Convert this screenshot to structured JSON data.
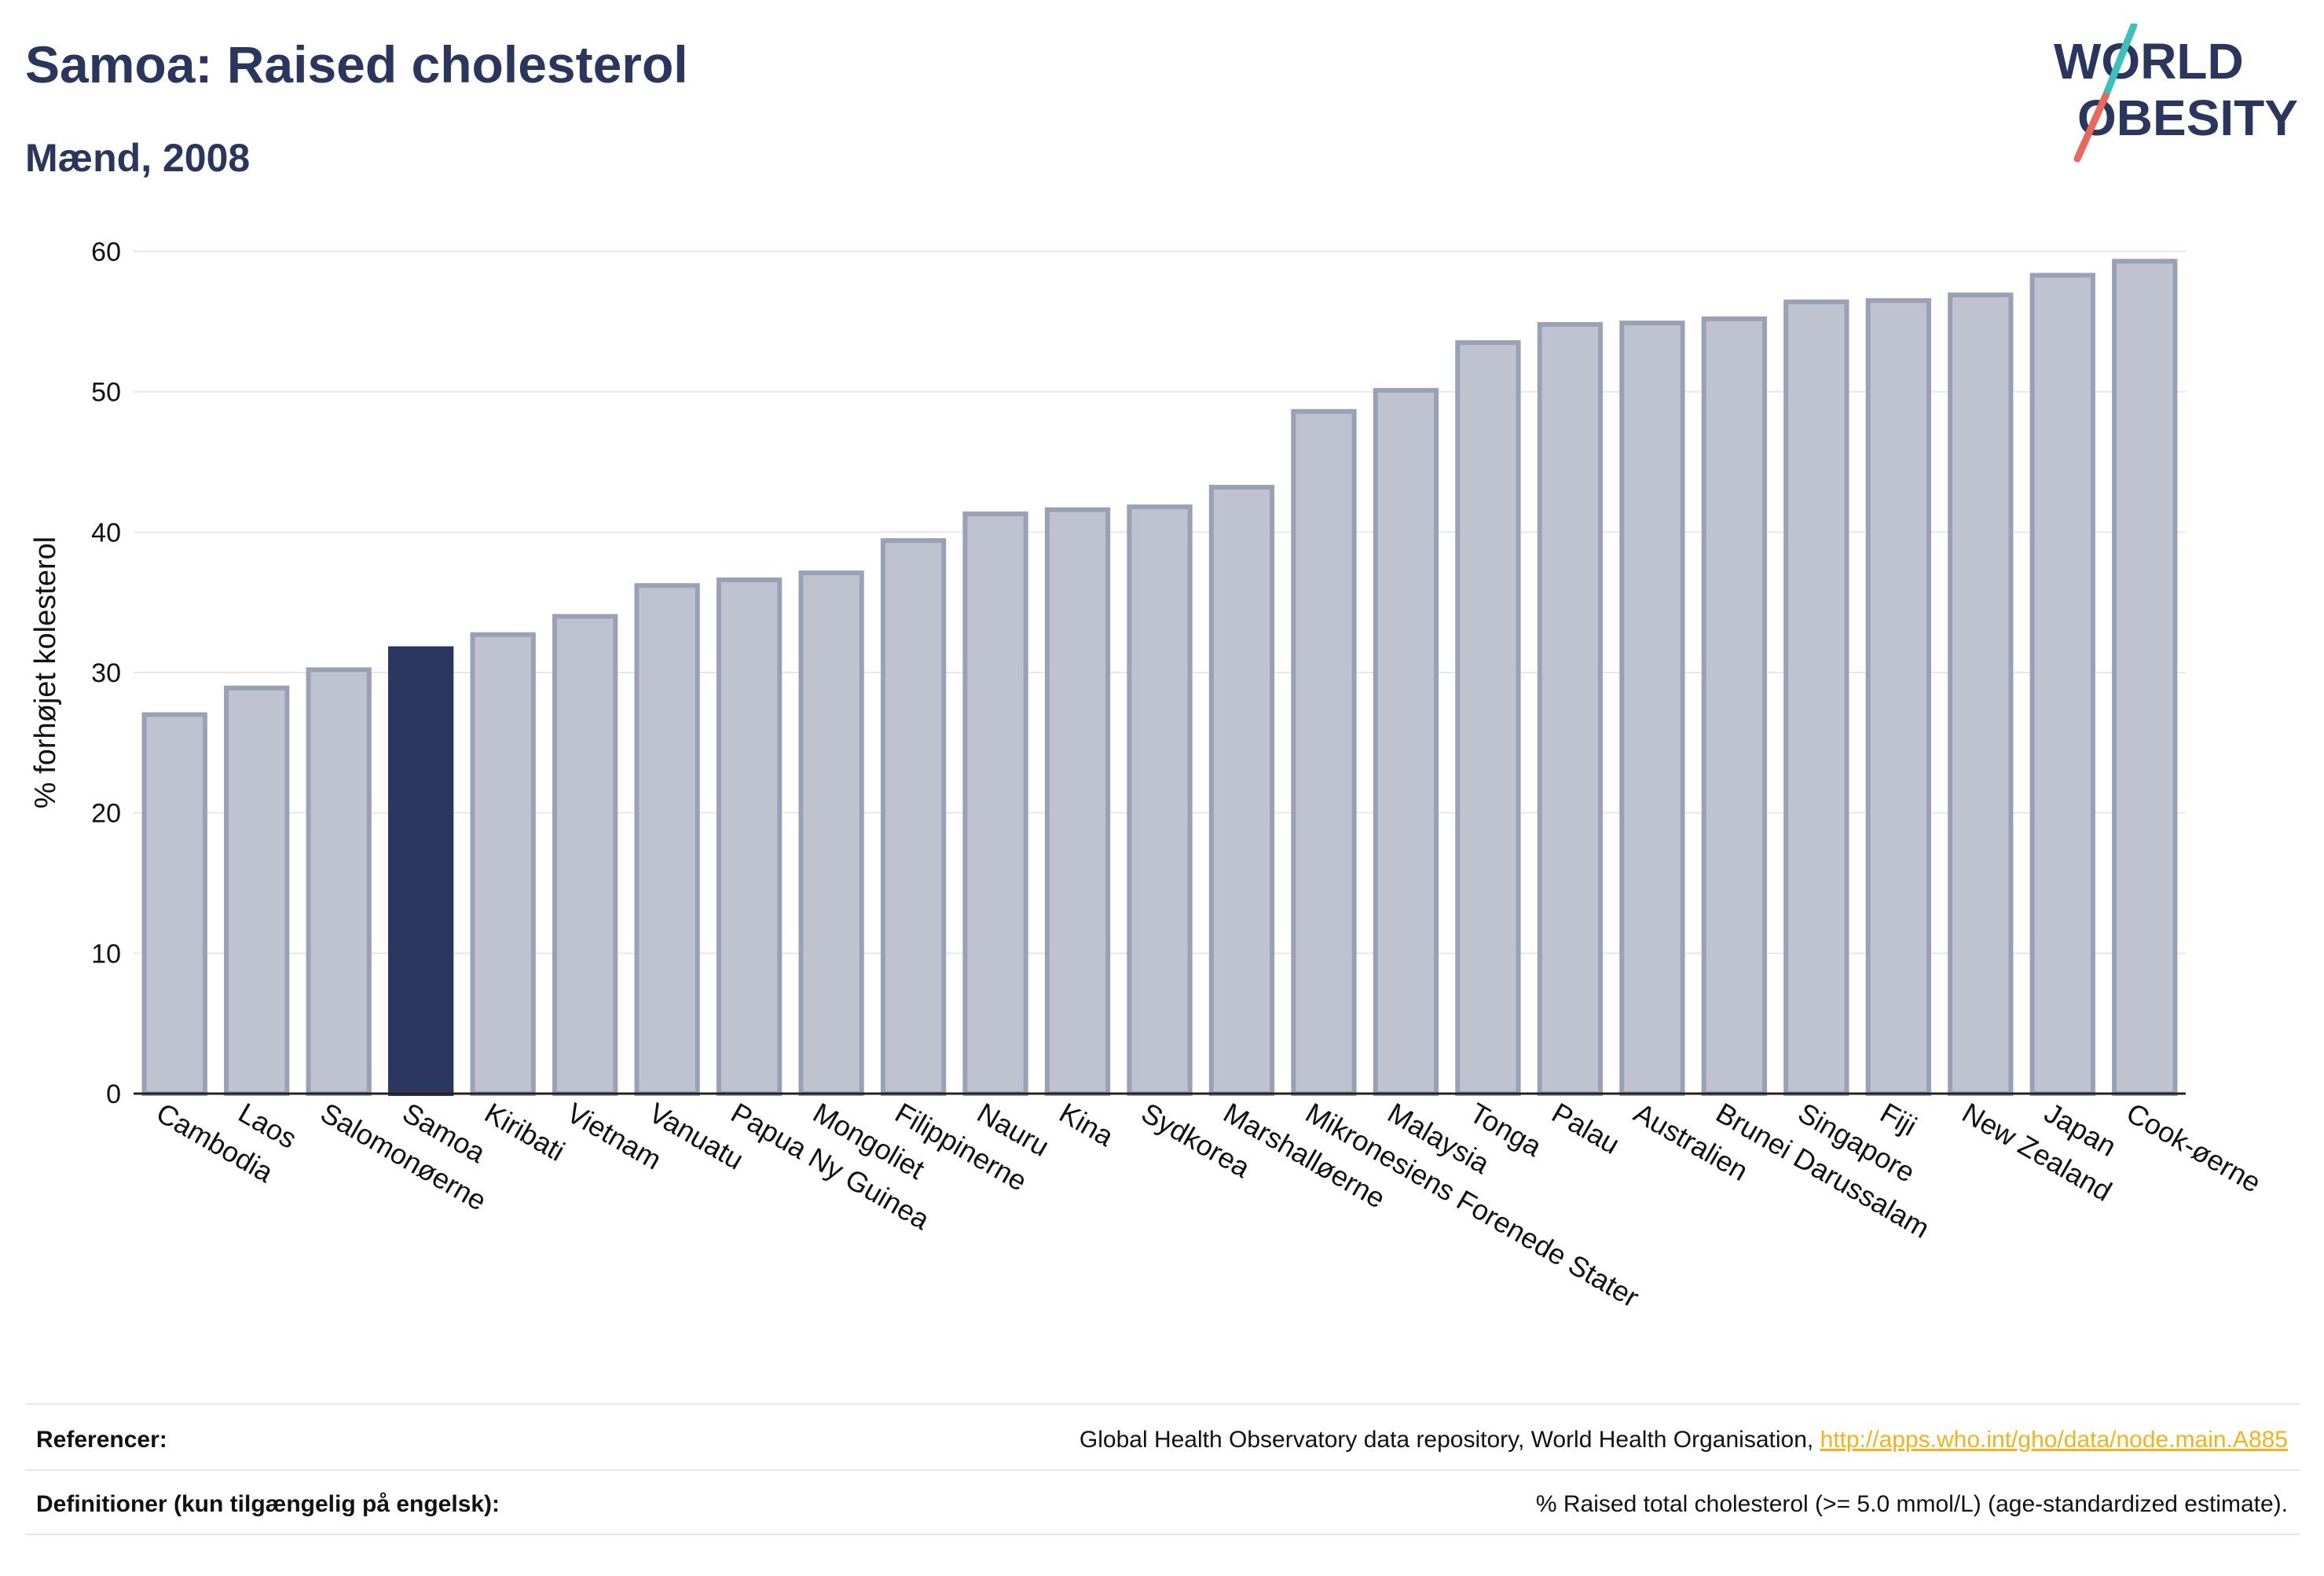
{
  "header": {
    "title": "Samoa: Raised cholesterol",
    "subtitle": "Mænd, 2008"
  },
  "logo": {
    "line1": "WORLD",
    "line2": "OBESITY",
    "accent_teal": "#3cbfbf",
    "accent_coral": "#e8685a"
  },
  "colors": {
    "bar": "#bfc3d0",
    "bar_border": "#9aa1b6",
    "highlight": "#2b3760",
    "text_dark": "#2a365e",
    "link": "#f2b21c"
  },
  "chart_data": {
    "type": "bar",
    "ylabel": "% forhøjet kolesterol",
    "ylim": [
      0,
      60
    ],
    "yticks": [
      0,
      10,
      20,
      30,
      40,
      50,
      60
    ],
    "grid": true,
    "highlight": "Samoa",
    "categories": [
      "Cambodia",
      "Laos",
      "Salomonøerne",
      "Samoa",
      "Kiribati",
      "Vietnam",
      "Vanuatu",
      "Papua Ny Guinea",
      "Mongoliet",
      "Filippinerne",
      "Nauru",
      "Kina",
      "Sydkorea",
      "Marshalløerne",
      "Mikronesiens Forenede Stater",
      "Malaysia",
      "Tonga",
      "Palau",
      "Australien",
      "Brunei Darussalam",
      "Singapore",
      "Fiji",
      "New Zealand",
      "Japan",
      "Cook-øerne"
    ],
    "values": [
      27.0,
      28.9,
      30.2,
      31.7,
      32.7,
      34.0,
      36.2,
      36.6,
      37.1,
      39.4,
      41.3,
      41.6,
      41.8,
      43.2,
      48.6,
      50.1,
      53.5,
      54.8,
      54.9,
      55.2,
      56.4,
      56.5,
      56.9,
      58.3,
      59.3
    ]
  },
  "footer": {
    "references_label": "Referencer:",
    "references_text": "Global Health Observatory data repository, World Health Organisation, ",
    "references_link": "http://apps.who.int/gho/data/node.main.A885",
    "definitions_label": "Definitioner (kun tilgængelig på engelsk):",
    "definitions_text": "% Raised total cholesterol (>= 5.0 mmol/L) (age-standardized estimate)."
  }
}
